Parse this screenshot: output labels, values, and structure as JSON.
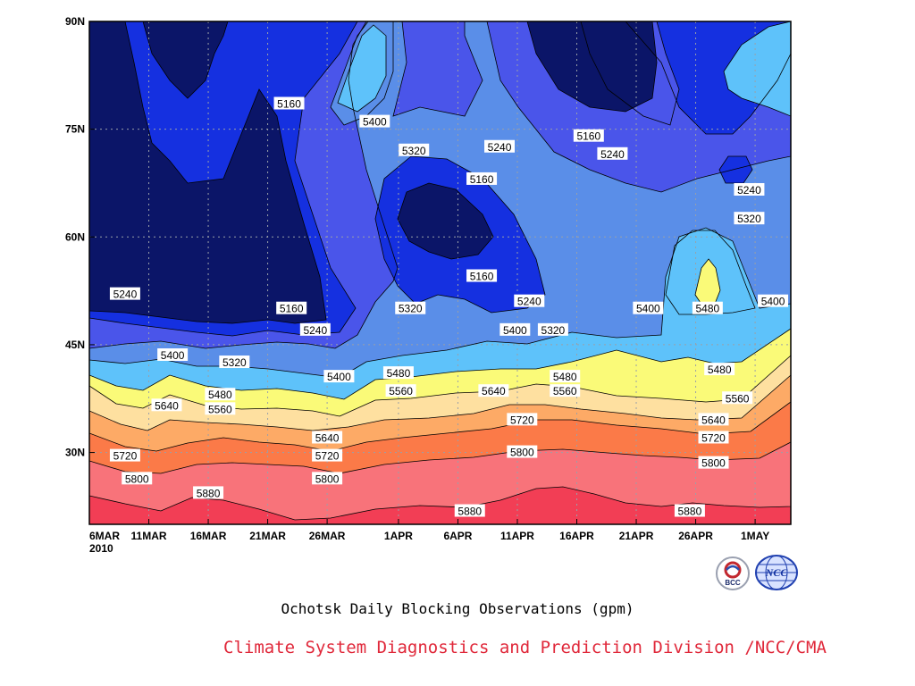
{
  "title": "Ochotsk Daily Blocking Observations (gpm)",
  "credit": "Climate System Diagnostics and Prediction Division /NCC/CMA",
  "logos": [
    {
      "name": "bcc-logo",
      "text": "BCC",
      "icon": "bcc-logo-icon"
    },
    {
      "name": "ncc-logo",
      "text": "NCC",
      "icon": "ncc-globe-icon"
    }
  ],
  "chart_data": {
    "type": "contour",
    "title": "Ochotsk Daily Blocking Observations (gpm)",
    "x_ticks": [
      "6MAR",
      "11MAR",
      "16MAR",
      "21MAR",
      "26MAR",
      "1APR",
      "6APR",
      "11APR",
      "16APR",
      "21APR",
      "26APR",
      "1MAY"
    ],
    "x_year": "2010",
    "x_tick_days": [
      0,
      5,
      10,
      15,
      20,
      26,
      31,
      36,
      41,
      46,
      51,
      56
    ],
    "x_range_days": [
      0,
      59
    ],
    "y_ticks": [
      "30N",
      "45N",
      "60N",
      "75N",
      "90N"
    ],
    "y_tick_values": [
      30,
      45,
      60,
      75,
      90
    ],
    "y_range": [
      20,
      90
    ],
    "units": "gpm",
    "grid": true,
    "levels": [
      5160,
      5240,
      5320,
      5400,
      5480,
      5560,
      5640,
      5720,
      5800,
      5880
    ],
    "fill_colors": [
      "#0b1568",
      "#1530e0",
      "#4a55ea",
      "#5a8ee8",
      "#5ec2fa",
      "#fafa78",
      "#fee0a0",
      "#fdaa66",
      "#fb7a48",
      "#f8737a",
      "#f23e55"
    ],
    "contour_labels": [
      {
        "text": "5160",
        "x": 16.8,
        "y": 78.5
      },
      {
        "text": "5400",
        "x": 24.0,
        "y": 76.0
      },
      {
        "text": "5320",
        "x": 27.3,
        "y": 72.0
      },
      {
        "text": "5240",
        "x": 34.5,
        "y": 72.5
      },
      {
        "text": "5160",
        "x": 33.0,
        "y": 68.0
      },
      {
        "text": "5160",
        "x": 42.0,
        "y": 74.0
      },
      {
        "text": "5240",
        "x": 44.0,
        "y": 71.5
      },
      {
        "text": "5240",
        "x": 55.5,
        "y": 66.5
      },
      {
        "text": "5320",
        "x": 55.5,
        "y": 62.5
      },
      {
        "text": "5160",
        "x": 33.0,
        "y": 54.5
      },
      {
        "text": "5240",
        "x": 3.0,
        "y": 52.0
      },
      {
        "text": "5160",
        "x": 17.0,
        "y": 50.0
      },
      {
        "text": "5320",
        "x": 27.0,
        "y": 50.0
      },
      {
        "text": "5240",
        "x": 37.0,
        "y": 51.0
      },
      {
        "text": "5400",
        "x": 47.0,
        "y": 50.0
      },
      {
        "text": "5480",
        "x": 52.0,
        "y": 50.0
      },
      {
        "text": "5400",
        "x": 57.5,
        "y": 51.0
      },
      {
        "text": "5240",
        "x": 19.0,
        "y": 47.0
      },
      {
        "text": "5400",
        "x": 35.8,
        "y": 47.0
      },
      {
        "text": "5320",
        "x": 39.0,
        "y": 47.0
      },
      {
        "text": "5400",
        "x": 7.0,
        "y": 43.5
      },
      {
        "text": "5320",
        "x": 12.2,
        "y": 42.5
      },
      {
        "text": "5400",
        "x": 21.0,
        "y": 40.5
      },
      {
        "text": "5480",
        "x": 26.0,
        "y": 41.0
      },
      {
        "text": "5480",
        "x": 40.0,
        "y": 40.5
      },
      {
        "text": "5480",
        "x": 53.0,
        "y": 41.5
      },
      {
        "text": "5560",
        "x": 26.2,
        "y": 38.5
      },
      {
        "text": "5640",
        "x": 34.0,
        "y": 38.5
      },
      {
        "text": "5560",
        "x": 40.0,
        "y": 38.5
      },
      {
        "text": "5480",
        "x": 11.0,
        "y": 38.0
      },
      {
        "text": "5560",
        "x": 11.0,
        "y": 36.0
      },
      {
        "text": "5560",
        "x": 54.5,
        "y": 37.5
      },
      {
        "text": "5640",
        "x": 6.5,
        "y": 36.5
      },
      {
        "text": "5720",
        "x": 36.4,
        "y": 34.5
      },
      {
        "text": "5640",
        "x": 20.0,
        "y": 32.0
      },
      {
        "text": "5640",
        "x": 52.5,
        "y": 34.5
      },
      {
        "text": "5720",
        "x": 52.5,
        "y": 32.0
      },
      {
        "text": "5720",
        "x": 3.0,
        "y": 29.5
      },
      {
        "text": "5720",
        "x": 20.0,
        "y": 29.5
      },
      {
        "text": "5800",
        "x": 36.4,
        "y": 30.0
      },
      {
        "text": "5800",
        "x": 4.0,
        "y": 26.3
      },
      {
        "text": "5800",
        "x": 20.0,
        "y": 26.3
      },
      {
        "text": "5800",
        "x": 52.5,
        "y": 28.5
      },
      {
        "text": "5880",
        "x": 10.0,
        "y": 24.3
      },
      {
        "text": "5880",
        "x": 32.0,
        "y": 21.8
      },
      {
        "text": "5880",
        "x": 50.5,
        "y": 21.8
      }
    ]
  }
}
